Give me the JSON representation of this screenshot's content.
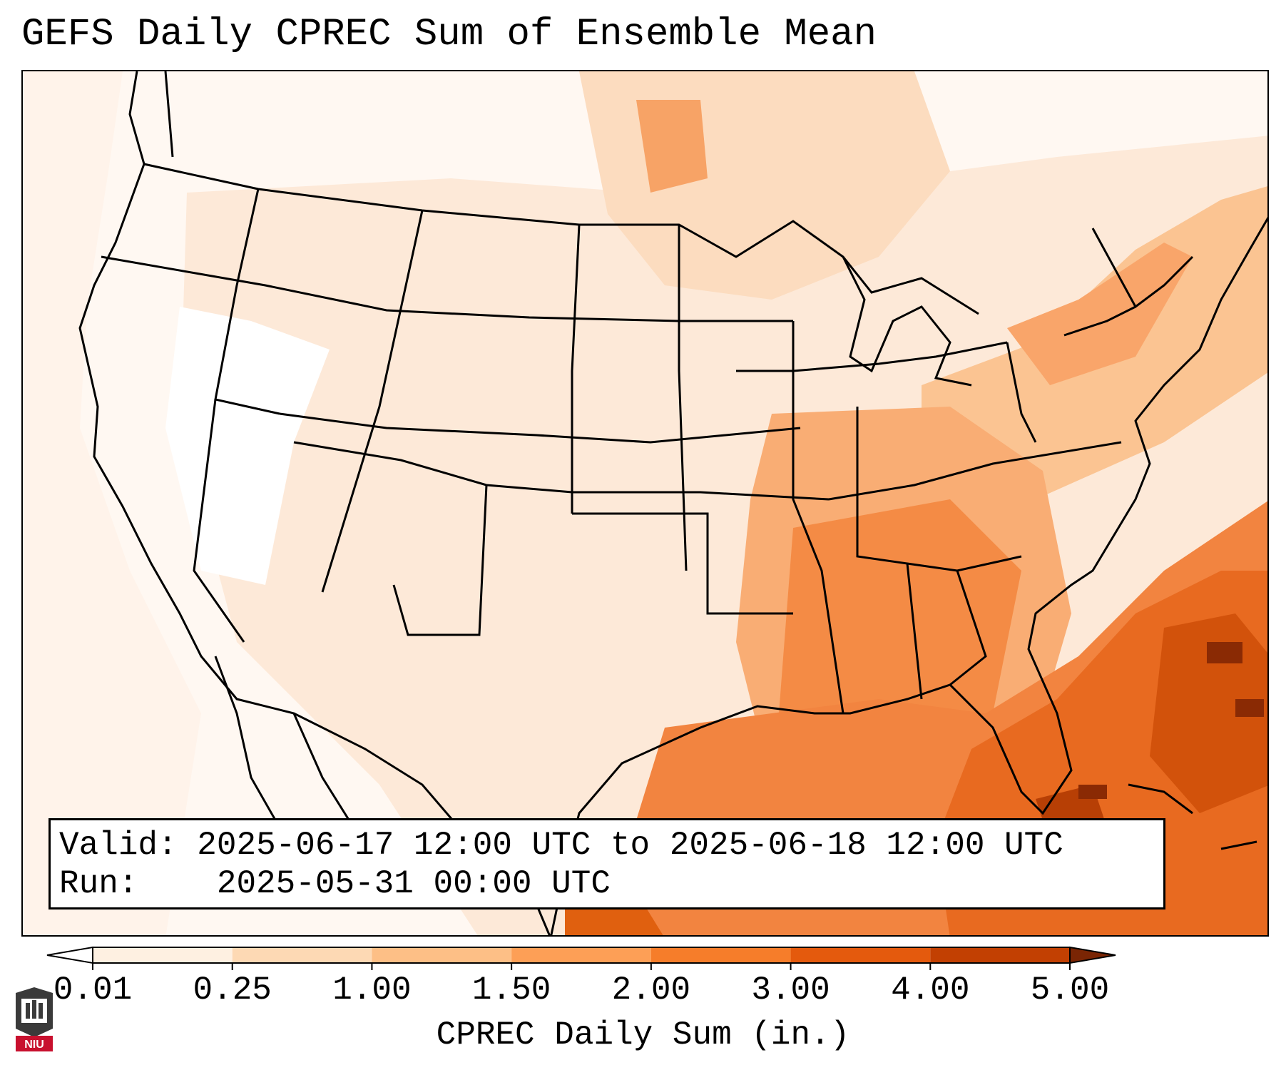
{
  "title": "GEFS Daily CPREC Sum of Ensemble Mean",
  "info": {
    "valid_label": "Valid:",
    "valid_value": "2025-06-17 12:00 UTC to 2025-06-18 12:00 UTC",
    "run_label": "Run:",
    "run_value": "2025-05-31 00:00 UTC"
  },
  "colorbar": {
    "label": "CPREC Daily Sum (in.)",
    "ticks": [
      "0.01",
      "0.25",
      "1.00",
      "1.50",
      "2.00",
      "3.00",
      "4.00",
      "5.00"
    ],
    "colors": [
      "#fef0e1",
      "#fdd9b4",
      "#fdbf86",
      "#fd9f56",
      "#f67d2a",
      "#e45a0d",
      "#c24002",
      "#8a2a04"
    ],
    "under_color": "#ffffff",
    "over_color": "#7a2504"
  },
  "logo": {
    "text": "NIU",
    "name": "niu-logo"
  },
  "map": {
    "region": "Contiguous United States",
    "boundaries": "state and coastline outlines",
    "fill_colors": {
      "very_light": "#fff5ec",
      "light": "#fde3cc",
      "light_mid": "#fcc99f",
      "mid": "#f9a76a",
      "mid_dark": "#f2853d",
      "dark": "#de5e12",
      "very_dark": "#b03d05",
      "darkest": "#7d2a04"
    }
  }
}
